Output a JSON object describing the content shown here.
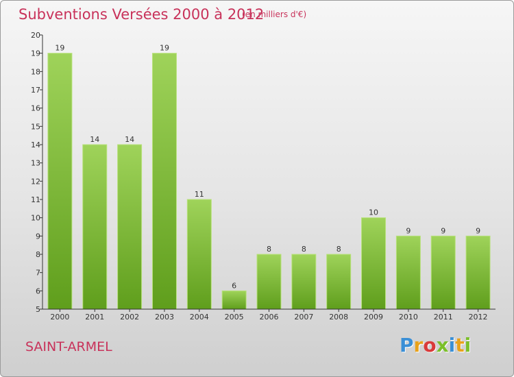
{
  "header": {
    "title": "Subventions Versées 2000 à 2012",
    "unit_note": "(en milliers d'€)"
  },
  "footer": {
    "city": "SAINT-ARMEL",
    "logo_letters": [
      "P",
      "r",
      "o",
      "x",
      "i",
      "t",
      "i"
    ],
    "logo_colors": [
      "#3a8fd6",
      "#e8a21c",
      "#d93a3a",
      "#7bbf2a",
      "#3a8fd6",
      "#e8a21c",
      "#7bbf2a"
    ]
  },
  "colors": {
    "bar_top": "#9fd35a",
    "bar_bottom": "#5f9e1c",
    "bar_edge": "#b9e27c",
    "axis": "#333333",
    "title": "#c8325a"
  },
  "chart_data": {
    "type": "bar",
    "categories": [
      "2000",
      "2001",
      "2002",
      "2003",
      "2004",
      "2005",
      "2006",
      "2007",
      "2008",
      "2009",
      "2010",
      "2011",
      "2012"
    ],
    "values": [
      19,
      14,
      14,
      19,
      11,
      6,
      8,
      8,
      8,
      10,
      9,
      9,
      9
    ],
    "data_labels": [
      "19",
      "14",
      "14",
      "19",
      "11",
      "6",
      "8",
      "8",
      "8",
      "10",
      "9",
      "9",
      "9"
    ],
    "yticks": [
      "5",
      "6",
      "7",
      "8",
      "9",
      "10",
      "11",
      "12",
      "13",
      "14",
      "15",
      "16",
      "17",
      "18",
      "19",
      "20"
    ],
    "ylim": [
      5,
      20
    ],
    "grid": false,
    "legend": "none"
  }
}
